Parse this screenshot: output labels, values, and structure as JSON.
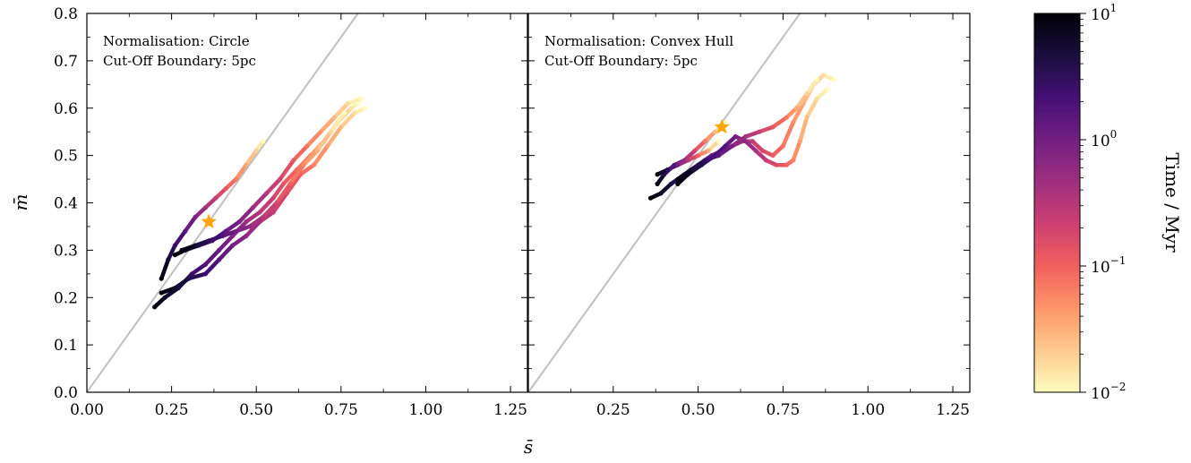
{
  "chart_data": [
    {
      "type": "scatter",
      "panel": "left",
      "annotation": [
        "Normalisation: Circle",
        "Cut-Off Boundary: 5pc"
      ],
      "xlabel": "s̄",
      "ylabel": "m̄",
      "xlim": [
        0.0,
        1.3
      ],
      "ylim": [
        0.0,
        0.8
      ],
      "xticks": [
        "0.00",
        "0.25",
        "0.50",
        "0.75",
        "1.00",
        "1.25"
      ],
      "yticks": [
        "0.0",
        "0.1",
        "0.2",
        "0.3",
        "0.4",
        "0.5",
        "0.6",
        "0.7",
        "0.8"
      ],
      "reference_line": "y = x",
      "star": {
        "x": 0.36,
        "y": 0.36
      },
      "tracks": [
        {
          "x": [
            0.8,
            0.78,
            0.74,
            0.7,
            0.66,
            0.62,
            0.58,
            0.55,
            0.51,
            0.47,
            0.43,
            0.39,
            0.35,
            0.31,
            0.27,
            0.23,
            0.2
          ],
          "y": [
            0.61,
            0.6,
            0.57,
            0.53,
            0.5,
            0.47,
            0.44,
            0.41,
            0.38,
            0.36,
            0.33,
            0.3,
            0.27,
            0.25,
            0.22,
            0.2,
            0.18
          ]
        },
        {
          "x": [
            0.82,
            0.79,
            0.75,
            0.71,
            0.67,
            0.63,
            0.59,
            0.55,
            0.51,
            0.47,
            0.43,
            0.39,
            0.35,
            0.3,
            0.26,
            0.22
          ],
          "y": [
            0.6,
            0.59,
            0.56,
            0.52,
            0.48,
            0.46,
            0.42,
            0.38,
            0.36,
            0.33,
            0.31,
            0.28,
            0.25,
            0.24,
            0.22,
            0.21
          ]
        },
        {
          "x": [
            0.81,
            0.77,
            0.73,
            0.69,
            0.65,
            0.61,
            0.57,
            0.53,
            0.49,
            0.45,
            0.41,
            0.37,
            0.33,
            0.29,
            0.26
          ],
          "y": [
            0.62,
            0.61,
            0.58,
            0.55,
            0.52,
            0.49,
            0.45,
            0.42,
            0.39,
            0.36,
            0.34,
            0.32,
            0.31,
            0.3,
            0.29
          ]
        },
        {
          "x": [
            0.76,
            0.72,
            0.68,
            0.64,
            0.6,
            0.56,
            0.52,
            0.48,
            0.44,
            0.4,
            0.36,
            0.32,
            0.28
          ],
          "y": [
            0.59,
            0.55,
            0.51,
            0.48,
            0.44,
            0.4,
            0.37,
            0.35,
            0.34,
            0.33,
            0.32,
            0.31,
            0.3
          ]
        },
        {
          "x": [
            0.52,
            0.5,
            0.47,
            0.44,
            0.41,
            0.38,
            0.35,
            0.32,
            0.29,
            0.26,
            0.24,
            0.22
          ],
          "y": [
            0.53,
            0.51,
            0.48,
            0.45,
            0.43,
            0.41,
            0.39,
            0.37,
            0.34,
            0.31,
            0.28,
            0.24
          ]
        }
      ]
    },
    {
      "type": "scatter",
      "panel": "right",
      "annotation": [
        "Normalisation: Convex Hull",
        "Cut-Off Boundary: 5pc"
      ],
      "xlim": [
        0.0,
        1.3
      ],
      "ylim": [
        0.0,
        0.8
      ],
      "xticks": [
        "0.25",
        "0.50",
        "0.75",
        "1.00",
        "1.25"
      ],
      "reference_line": "y = x",
      "star": {
        "x": 0.57,
        "y": 0.56
      },
      "tracks": [
        {
          "x": [
            0.9,
            0.87,
            0.84,
            0.81,
            0.78,
            0.75,
            0.72,
            0.69,
            0.66,
            0.63,
            0.6,
            0.57,
            0.54,
            0.5,
            0.46,
            0.42,
            0.39,
            0.36
          ],
          "y": [
            0.66,
            0.67,
            0.65,
            0.61,
            0.57,
            0.52,
            0.5,
            0.51,
            0.53,
            0.53,
            0.52,
            0.51,
            0.5,
            0.48,
            0.46,
            0.44,
            0.42,
            0.41
          ]
        },
        {
          "x": [
            0.88,
            0.85,
            0.82,
            0.8,
            0.78,
            0.76,
            0.73,
            0.7,
            0.67,
            0.64,
            0.61,
            0.58,
            0.55,
            0.51,
            0.47,
            0.44
          ],
          "y": [
            0.64,
            0.62,
            0.58,
            0.53,
            0.49,
            0.48,
            0.48,
            0.49,
            0.51,
            0.53,
            0.54,
            0.52,
            0.5,
            0.48,
            0.46,
            0.44
          ]
        },
        {
          "x": [
            0.85,
            0.82,
            0.79,
            0.76,
            0.72,
            0.68,
            0.64,
            0.6,
            0.56,
            0.52,
            0.48,
            0.44
          ],
          "y": [
            0.66,
            0.63,
            0.6,
            0.58,
            0.56,
            0.55,
            0.54,
            0.52,
            0.5,
            0.49,
            0.47,
            0.45
          ]
        },
        {
          "x": [
            0.58,
            0.55,
            0.52,
            0.49,
            0.46,
            0.43,
            0.4,
            0.38
          ],
          "y": [
            0.57,
            0.55,
            0.53,
            0.51,
            0.49,
            0.48,
            0.46,
            0.44
          ]
        },
        {
          "x": [
            0.56,
            0.53,
            0.5,
            0.47,
            0.44,
            0.41,
            0.38
          ],
          "y": [
            0.53,
            0.51,
            0.5,
            0.49,
            0.48,
            0.47,
            0.46
          ]
        }
      ]
    }
  ],
  "colorbar": {
    "label": "Time / Myr",
    "scale": "log",
    "range": [
      0.01,
      10
    ],
    "colormap": "magma",
    "ticks": [
      {
        "base": "10",
        "exp": "1",
        "value": 10
      },
      {
        "base": "10",
        "exp": "0",
        "value": 1
      },
      {
        "base": "10",
        "exp": "−1",
        "value": 0.1
      },
      {
        "base": "10",
        "exp": "−2",
        "value": 0.01
      }
    ],
    "stops": [
      "#000004",
      "#180f3d",
      "#440f76",
      "#721f81",
      "#9e2f7f",
      "#cd4071",
      "#f1605d",
      "#fd9668",
      "#feca8d",
      "#fcfdbf"
    ]
  },
  "colors": {
    "reference_line": "#c0c0c0",
    "star": "#ffa500",
    "axes": "#000000"
  }
}
